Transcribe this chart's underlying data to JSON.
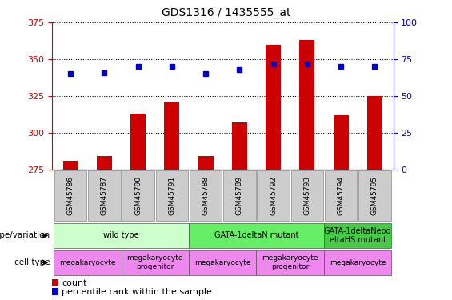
{
  "title": "GDS1316 / 1435555_at",
  "samples": [
    "GSM45786",
    "GSM45787",
    "GSM45790",
    "GSM45791",
    "GSM45788",
    "GSM45789",
    "GSM45792",
    "GSM45793",
    "GSM45794",
    "GSM45795"
  ],
  "count_values": [
    281,
    284,
    313,
    321,
    284,
    307,
    360,
    363,
    312,
    325
  ],
  "percentile_values": [
    65,
    66,
    70,
    70,
    65,
    68,
    72,
    72,
    70,
    70
  ],
  "ylim_left": [
    275,
    375
  ],
  "ylim_right": [
    0,
    100
  ],
  "yticks_left": [
    275,
    300,
    325,
    350,
    375
  ],
  "yticks_right": [
    0,
    25,
    50,
    75,
    100
  ],
  "bar_color": "#cc0000",
  "dot_color": "#0000cc",
  "bar_bottom": 275,
  "genotype_groups": [
    {
      "label": "wild type",
      "start": 0,
      "end": 4,
      "color": "#ccffcc"
    },
    {
      "label": "GATA-1deltaN mutant",
      "start": 4,
      "end": 8,
      "color": "#66ee66"
    },
    {
      "label": "GATA-1deltaNeod\neltaHS mutant",
      "start": 8,
      "end": 10,
      "color": "#44cc44"
    }
  ],
  "celltype_groups": [
    {
      "label": "megakaryocyte",
      "start": 0,
      "end": 2,
      "color": "#ee88ee"
    },
    {
      "label": "megakaryocyte\nprogenitor",
      "start": 2,
      "end": 4,
      "color": "#ee88ee"
    },
    {
      "label": "megakaryocyte",
      "start": 4,
      "end": 6,
      "color": "#ee88ee"
    },
    {
      "label": "megakaryocyte\nprogenitor",
      "start": 6,
      "end": 8,
      "color": "#ee88ee"
    },
    {
      "label": "megakaryocyte",
      "start": 8,
      "end": 10,
      "color": "#ee88ee"
    }
  ],
  "left_label_color": "#cc0000",
  "right_label_color": "#0000cc",
  "tick_label_bg": "#cccccc",
  "fig_width": 5.65,
  "fig_height": 3.75,
  "dpi": 100
}
